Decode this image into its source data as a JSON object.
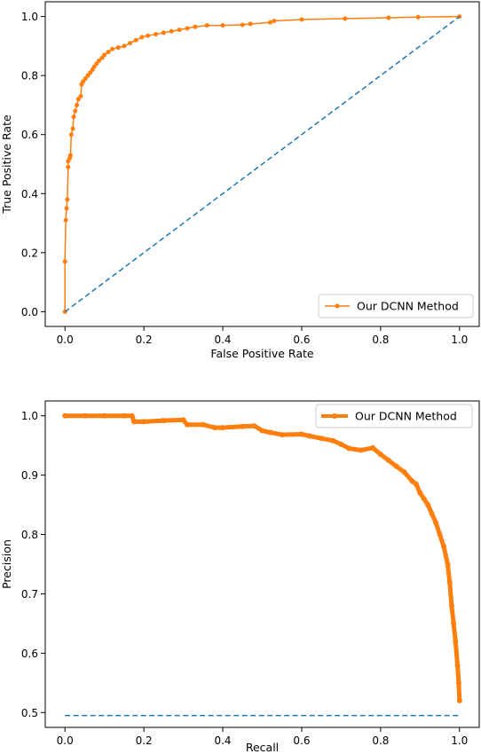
{
  "colors": {
    "model": "#ff7f0e",
    "baseline": "#1f77b4"
  },
  "chart_data": [
    {
      "type": "line",
      "title": "",
      "xlabel": "False Positive Rate",
      "ylabel": "True Positive Rate",
      "xlim": [
        -0.05,
        1.05
      ],
      "ylim": [
        -0.05,
        1.05
      ],
      "xticks": [
        "0.0",
        "0.2",
        "0.4",
        "0.6",
        "0.8",
        "1.0"
      ],
      "yticks": [
        "0.0",
        "0.2",
        "0.4",
        "0.6",
        "0.8",
        "1.0"
      ],
      "grid": false,
      "legend_position": "lower-right",
      "series": [
        {
          "name": "Our DCNN Method",
          "style": "solid-with-markers",
          "color": "#ff7f0e",
          "x": [
            0.0,
            0.0,
            0.002,
            0.004,
            0.006,
            0.008,
            0.008,
            0.012,
            0.014,
            0.016,
            0.02,
            0.022,
            0.026,
            0.03,
            0.034,
            0.04,
            0.042,
            0.046,
            0.052,
            0.058,
            0.064,
            0.07,
            0.074,
            0.08,
            0.086,
            0.094,
            0.1,
            0.11,
            0.12,
            0.135,
            0.15,
            0.165,
            0.18,
            0.195,
            0.21,
            0.23,
            0.25,
            0.27,
            0.29,
            0.31,
            0.33,
            0.36,
            0.4,
            0.45,
            0.47,
            0.52,
            0.53,
            0.6,
            0.71,
            0.82,
            0.895,
            1.0
          ],
          "y": [
            0.0,
            0.17,
            0.31,
            0.35,
            0.38,
            0.49,
            0.51,
            0.52,
            0.53,
            0.6,
            0.62,
            0.66,
            0.68,
            0.7,
            0.72,
            0.73,
            0.77,
            0.78,
            0.79,
            0.8,
            0.81,
            0.82,
            0.83,
            0.84,
            0.85,
            0.86,
            0.87,
            0.88,
            0.89,
            0.895,
            0.9,
            0.91,
            0.92,
            0.93,
            0.935,
            0.94,
            0.945,
            0.95,
            0.955,
            0.96,
            0.965,
            0.97,
            0.97,
            0.972,
            0.975,
            0.98,
            0.985,
            0.99,
            0.993,
            0.996,
            0.998,
            1.0
          ]
        },
        {
          "name": "",
          "style": "dashed",
          "color": "#1f77b4",
          "x": [
            0.0,
            1.0
          ],
          "y": [
            0.0,
            1.0
          ]
        }
      ]
    },
    {
      "type": "line",
      "title": "",
      "xlabel": "Recall",
      "ylabel": "Precision",
      "xlim": [
        -0.05,
        1.05
      ],
      "ylim": [
        0.475,
        1.025
      ],
      "xticks": [
        "0.0",
        "0.2",
        "0.4",
        "0.6",
        "0.8",
        "1.0"
      ],
      "yticks": [
        "0.5",
        "0.6",
        "0.7",
        "0.8",
        "0.9",
        "1.0"
      ],
      "grid": false,
      "legend_position": "upper-right",
      "series": [
        {
          "name": "Our DCNN Method",
          "style": "dense-markers",
          "color": "#ff7f0e",
          "x": [
            0.0,
            0.05,
            0.1,
            0.15,
            0.17,
            0.175,
            0.2,
            0.25,
            0.3,
            0.31,
            0.35,
            0.38,
            0.4,
            0.45,
            0.48,
            0.5,
            0.52,
            0.55,
            0.6,
            0.62,
            0.65,
            0.68,
            0.7,
            0.72,
            0.75,
            0.78,
            0.8,
            0.82,
            0.84,
            0.86,
            0.88,
            0.89,
            0.9,
            0.91,
            0.92,
            0.93,
            0.94,
            0.95,
            0.96,
            0.97,
            0.975,
            0.98,
            0.985,
            0.99,
            0.995,
            0.998,
            1.0
          ],
          "y": [
            1.0,
            1.0,
            1.0,
            1.0,
            1.0,
            0.99,
            0.99,
            0.992,
            0.993,
            0.985,
            0.985,
            0.98,
            0.98,
            0.982,
            0.983,
            0.975,
            0.972,
            0.968,
            0.969,
            0.966,
            0.962,
            0.958,
            0.952,
            0.945,
            0.942,
            0.946,
            0.935,
            0.925,
            0.915,
            0.905,
            0.89,
            0.885,
            0.87,
            0.86,
            0.85,
            0.835,
            0.82,
            0.8,
            0.78,
            0.75,
            0.72,
            0.68,
            0.65,
            0.62,
            0.58,
            0.55,
            0.52
          ]
        },
        {
          "name": "",
          "style": "dashed",
          "color": "#1f77b4",
          "x": [
            0.0,
            1.0
          ],
          "y": [
            0.495,
            0.495
          ]
        }
      ]
    }
  ]
}
